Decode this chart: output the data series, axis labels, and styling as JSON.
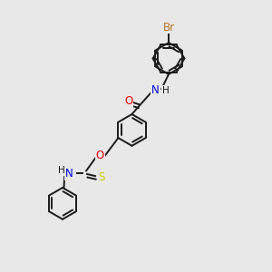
{
  "background_color": "#e8e8e8",
  "bond_color": "#1a1a1a",
  "atom_colors": {
    "Br": "#b8762a",
    "O": "#e60000",
    "N": "#0000e6",
    "S": "#cccc00",
    "H": "#1a1a1a",
    "C": "#1a1a1a"
  },
  "font_size": 8.5,
  "lw": 1.4,
  "r": 0.58,
  "r_small": 0.52
}
